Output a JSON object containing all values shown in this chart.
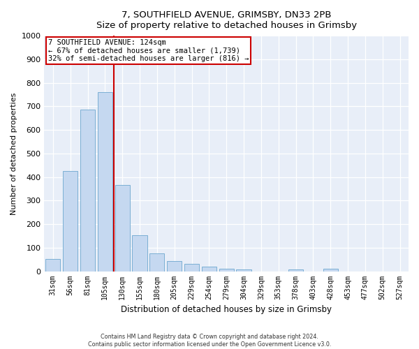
{
  "title1": "7, SOUTHFIELD AVENUE, GRIMSBY, DN33 2PB",
  "title2": "Size of property relative to detached houses in Grimsby",
  "xlabel": "Distribution of detached houses by size in Grimsby",
  "ylabel": "Number of detached properties",
  "bar_labels": [
    "31sqm",
    "56sqm",
    "81sqm",
    "105sqm",
    "130sqm",
    "155sqm",
    "180sqm",
    "205sqm",
    "229sqm",
    "254sqm",
    "279sqm",
    "304sqm",
    "329sqm",
    "353sqm",
    "378sqm",
    "403sqm",
    "428sqm",
    "453sqm",
    "477sqm",
    "502sqm",
    "527sqm"
  ],
  "bar_values": [
    52,
    425,
    685,
    760,
    365,
    153,
    75,
    42,
    30,
    18,
    11,
    8,
    0,
    0,
    8,
    0,
    10,
    0,
    0,
    0,
    0
  ],
  "bar_color": "#c5d8f0",
  "bar_edgecolor": "#7bafd4",
  "vline_color": "#cc0000",
  "annotation_title": "7 SOUTHFIELD AVENUE: 124sqm",
  "annotation_line1": "← 67% of detached houses are smaller (1,739)",
  "annotation_line2": "32% of semi-detached houses are larger (816) →",
  "annotation_box_edgecolor": "#cc0000",
  "ylim": [
    0,
    1000
  ],
  "yticks": [
    0,
    100,
    200,
    300,
    400,
    500,
    600,
    700,
    800,
    900,
    1000
  ],
  "footer1": "Contains HM Land Registry data © Crown copyright and database right 2024.",
  "footer2": "Contains public sector information licensed under the Open Government Licence v3.0.",
  "bg_color": "#ffffff",
  "plot_bg_color": "#e8eef8"
}
